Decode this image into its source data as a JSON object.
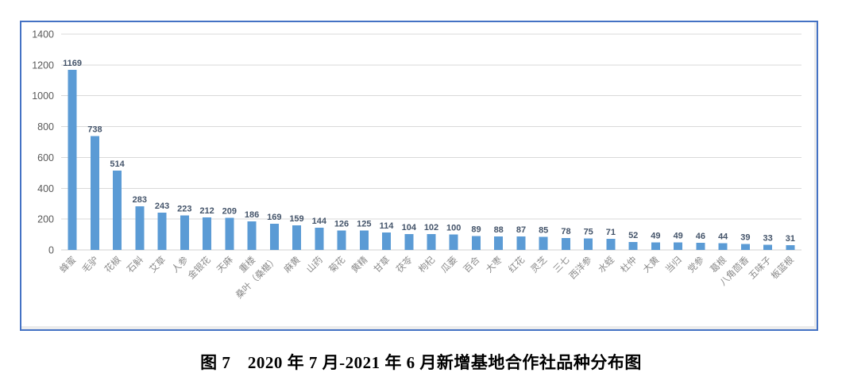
{
  "caption": "图 7　2020 年 7 月-2021 年 6 月新增基地合作社品种分布图",
  "chart_data": {
    "type": "bar",
    "title": "",
    "xlabel": "",
    "ylabel": "",
    "categories": [
      "蜂蜜",
      "毛驴",
      "花椒",
      "石斛",
      "艾草",
      "人参",
      "金银花",
      "天麻",
      "重楼",
      "桑叶（桑椹）",
      "麻黄",
      "山药",
      "菊花",
      "黄精",
      "甘草",
      "茯苓",
      "枸杞",
      "瓜蒌",
      "百合",
      "大枣",
      "红花",
      "灵芝",
      "三七",
      "西洋参",
      "水蛭",
      "杜仲",
      "大黄",
      "当归",
      "党参",
      "葛根",
      "八角茴香",
      "五味子",
      "板蓝根"
    ],
    "values": [
      1169,
      738,
      514,
      283,
      243,
      223,
      212,
      209,
      186,
      169,
      159,
      144,
      126,
      125,
      114,
      104,
      102,
      100,
      89,
      88,
      87,
      85,
      78,
      75,
      71,
      52,
      49,
      49,
      46,
      44,
      39,
      33,
      31
    ],
    "yticks": [
      0,
      200,
      400,
      600,
      800,
      1000,
      1200,
      1400
    ],
    "ylim": [
      0,
      1400
    ],
    "grid": true,
    "legend": "none",
    "data_labels": true,
    "x_label_rotation": -45,
    "colors": {
      "bar": "#5B9BD5",
      "value_label": "#44546A",
      "x_tick_label": "#8a8a8a",
      "y_tick_label": "#595959",
      "gridline": "#d9d9d9",
      "baseline": "#d0d0d0",
      "frame_border": "#4472C4",
      "background": "#ffffff"
    }
  }
}
